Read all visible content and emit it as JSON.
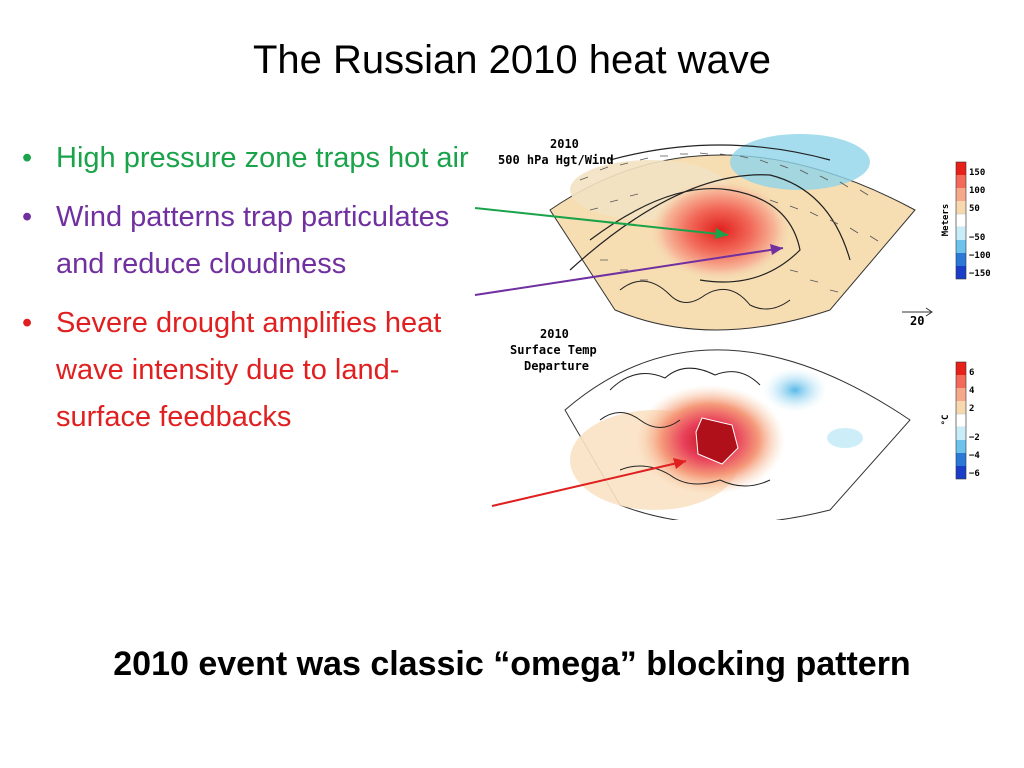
{
  "slide": {
    "title": "The Russian 2010 heat wave",
    "footer": "2010 event was classic “omega” blocking pattern"
  },
  "bullets": [
    {
      "text": "High pressure zone traps hot air",
      "color": "#1aa34a"
    },
    {
      "text": "Wind patterns trap particulates and reduce cloudiness",
      "color": "#7030a0"
    },
    {
      "text": "Severe drought amplifies heat wave intensity due to land-surface feedbacks",
      "color": "#e02020"
    }
  ],
  "figure": {
    "top_map": {
      "year": "2010",
      "label": "500 hPa Hgt/Wind",
      "colorbar_unit": "Meters",
      "colorbar_ticks": [
        "150",
        "100",
        "50",
        "−50",
        "−100",
        "−150"
      ],
      "wind_scale": "20"
    },
    "bottom_map": {
      "year": "2010",
      "label_line1": "Surface Temp",
      "label_line2": "Departure",
      "colorbar_unit": "°C",
      "colorbar_ticks": [
        "6",
        "4",
        "2",
        "−2",
        "−4",
        "−6"
      ]
    }
  }
}
